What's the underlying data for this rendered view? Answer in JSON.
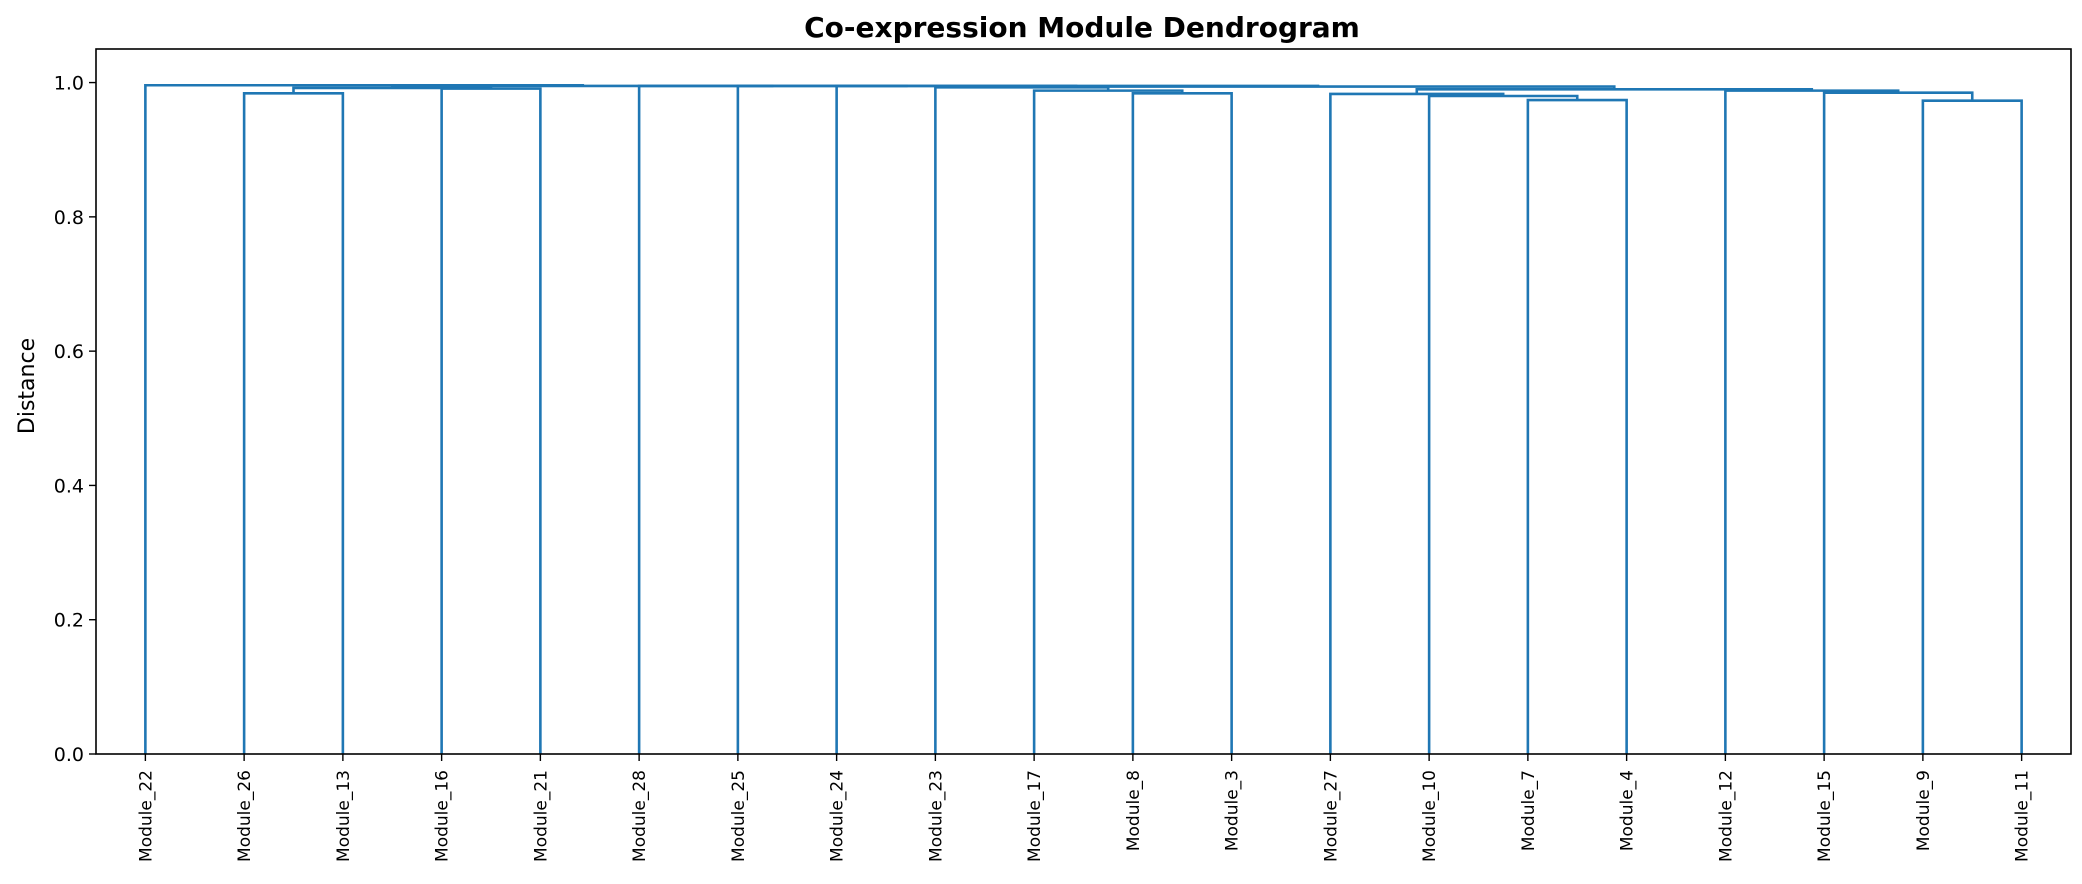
{
  "chart_data": {
    "type": "dendrogram",
    "title": "Co-expression Module Dendrogram",
    "xlabel": "",
    "ylabel": "Distance",
    "ylim": [
      0,
      1.05
    ],
    "yticks": [
      "0.0",
      "0.2",
      "0.4",
      "0.6",
      "0.8",
      "1.0"
    ],
    "ytick_values": [
      0.0,
      0.2,
      0.4,
      0.6,
      0.8,
      1.0
    ],
    "grid": false,
    "link_color": "#1f77b4",
    "leaves": [
      "Module_22",
      "Module_26",
      "Module_13",
      "Module_16",
      "Module_21",
      "Module_28",
      "Module_25",
      "Module_24",
      "Module_23",
      "Module_17",
      "Module_8",
      "Module_3",
      "Module_27",
      "Module_10",
      "Module_7",
      "Module_4",
      "Module_12",
      "Module_15",
      "Module_9",
      "Module_11"
    ],
    "merges": [
      {
        "left": "Module_9",
        "right": "Module_11",
        "height": 0.973
      },
      {
        "left": "Module_7",
        "right": "Module_4",
        "height": 0.974
      },
      {
        "left": "Module_10",
        "right": "n2",
        "height": 0.98
      },
      {
        "left": "Module_27",
        "right": "n3",
        "height": 0.983
      },
      {
        "left": "Module_26",
        "right": "Module_13",
        "height": 0.984
      },
      {
        "left": "Module_8",
        "right": "Module_3",
        "height": 0.984
      },
      {
        "left": "Module_15",
        "right": "n1",
        "height": 0.985
      },
      {
        "left": "Module_17",
        "right": "n6",
        "height": 0.988
      },
      {
        "left": "Module_12",
        "right": "n7",
        "height": 0.988
      },
      {
        "left": "n4",
        "right": "n9",
        "height": 0.99
      },
      {
        "left": "Module_16",
        "right": "Module_21",
        "height": 0.991
      },
      {
        "left": "n5",
        "right": "n11",
        "height": 0.992
      },
      {
        "left": "Module_23",
        "right": "n8",
        "height": 0.993
      },
      {
        "left": "n13",
        "right": "n10",
        "height": 0.994
      },
      {
        "left": "Module_24",
        "right": "n14",
        "height": 0.995
      },
      {
        "left": "Module_25",
        "right": "n15",
        "height": 0.995
      },
      {
        "left": "Module_28",
        "right": "n16",
        "height": 0.995
      },
      {
        "left": "n12",
        "right": "n17",
        "height": 0.995
      },
      {
        "left": "Module_22",
        "right": "n18",
        "height": 0.996
      }
    ]
  }
}
